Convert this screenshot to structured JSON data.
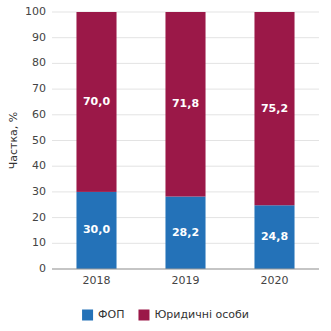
{
  "chart_data": {
    "type": "bar",
    "stacked": true,
    "categories": [
      "2018",
      "2019",
      "2020"
    ],
    "series": [
      {
        "name": "ФОП",
        "color": "#2472b8",
        "values": [
          30.0,
          28.2,
          24.8
        ],
        "value_labels": [
          "30,0",
          "28,2",
          "24,8"
        ]
      },
      {
        "name": "Юридичні особи",
        "color": "#9b1848",
        "values": [
          70.0,
          71.8,
          75.2
        ],
        "value_labels": [
          "70,0",
          "71,8",
          "75,2"
        ]
      }
    ],
    "ylabel": "Частка, %",
    "ylim": [
      0,
      100
    ],
    "yticks": [
      0,
      10,
      20,
      30,
      40,
      50,
      60,
      70,
      80,
      90,
      100
    ],
    "grid": true,
    "legend": "bottom",
    "data_labels": true
  }
}
